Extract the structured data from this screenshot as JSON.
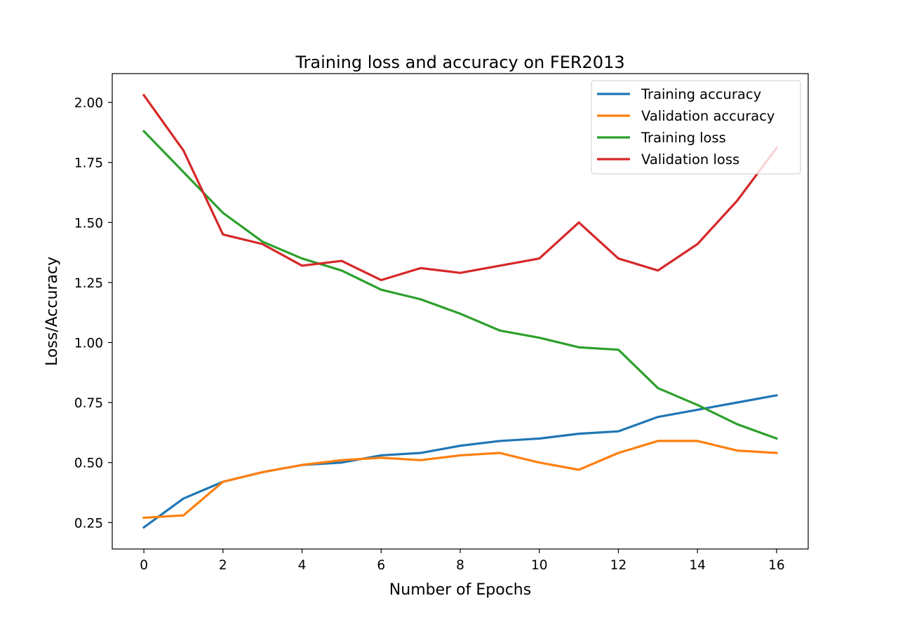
{
  "chart_data": {
    "type": "line",
    "title": "Training loss and accuracy on FER2013",
    "xlabel": "Number of Epochs",
    "ylabel": "Loss/Accuracy",
    "x": [
      0,
      1,
      2,
      3,
      4,
      5,
      6,
      7,
      8,
      9,
      10,
      11,
      12,
      13,
      14,
      15,
      16
    ],
    "xlim": [
      -0.8,
      16.8
    ],
    "ylim": [
      0.14,
      2.12
    ],
    "xticks": [
      0,
      2,
      4,
      6,
      8,
      10,
      12,
      14,
      16
    ],
    "xtick_labels": [
      "0",
      "2",
      "4",
      "6",
      "8",
      "10",
      "12",
      "14",
      "16"
    ],
    "yticks": [
      0.25,
      0.5,
      0.75,
      1.0,
      1.25,
      1.5,
      1.75,
      2.0
    ],
    "ytick_labels": [
      "0.25",
      "0.50",
      "0.75",
      "1.00",
      "1.25",
      "1.50",
      "1.75",
      "2.00"
    ],
    "grid": false,
    "legend_position": "top-right",
    "series": [
      {
        "name": "Training accuracy",
        "color": "#1f77b4",
        "values": [
          0.23,
          0.35,
          0.42,
          0.46,
          0.49,
          0.5,
          0.53,
          0.54,
          0.57,
          0.59,
          0.6,
          0.62,
          0.63,
          0.69,
          0.72,
          0.75,
          0.78
        ]
      },
      {
        "name": "Validation accuracy",
        "color": "#ff7f0e",
        "values": [
          0.27,
          0.28,
          0.42,
          0.46,
          0.49,
          0.51,
          0.52,
          0.51,
          0.53,
          0.54,
          0.5,
          0.47,
          0.54,
          0.59,
          0.59,
          0.55,
          0.54
        ]
      },
      {
        "name": "Training loss",
        "color": "#2ca02c",
        "values": [
          1.88,
          1.71,
          1.54,
          1.42,
          1.35,
          1.3,
          1.22,
          1.18,
          1.12,
          1.05,
          1.02,
          0.98,
          0.97,
          0.81,
          0.74,
          0.66,
          0.6
        ]
      },
      {
        "name": "Validation loss",
        "color": "#d62728",
        "values": [
          2.03,
          1.8,
          1.45,
          1.41,
          1.32,
          1.34,
          1.26,
          1.31,
          1.29,
          1.32,
          1.35,
          1.5,
          1.35,
          1.3,
          1.41,
          1.59,
          1.81
        ]
      }
    ]
  }
}
